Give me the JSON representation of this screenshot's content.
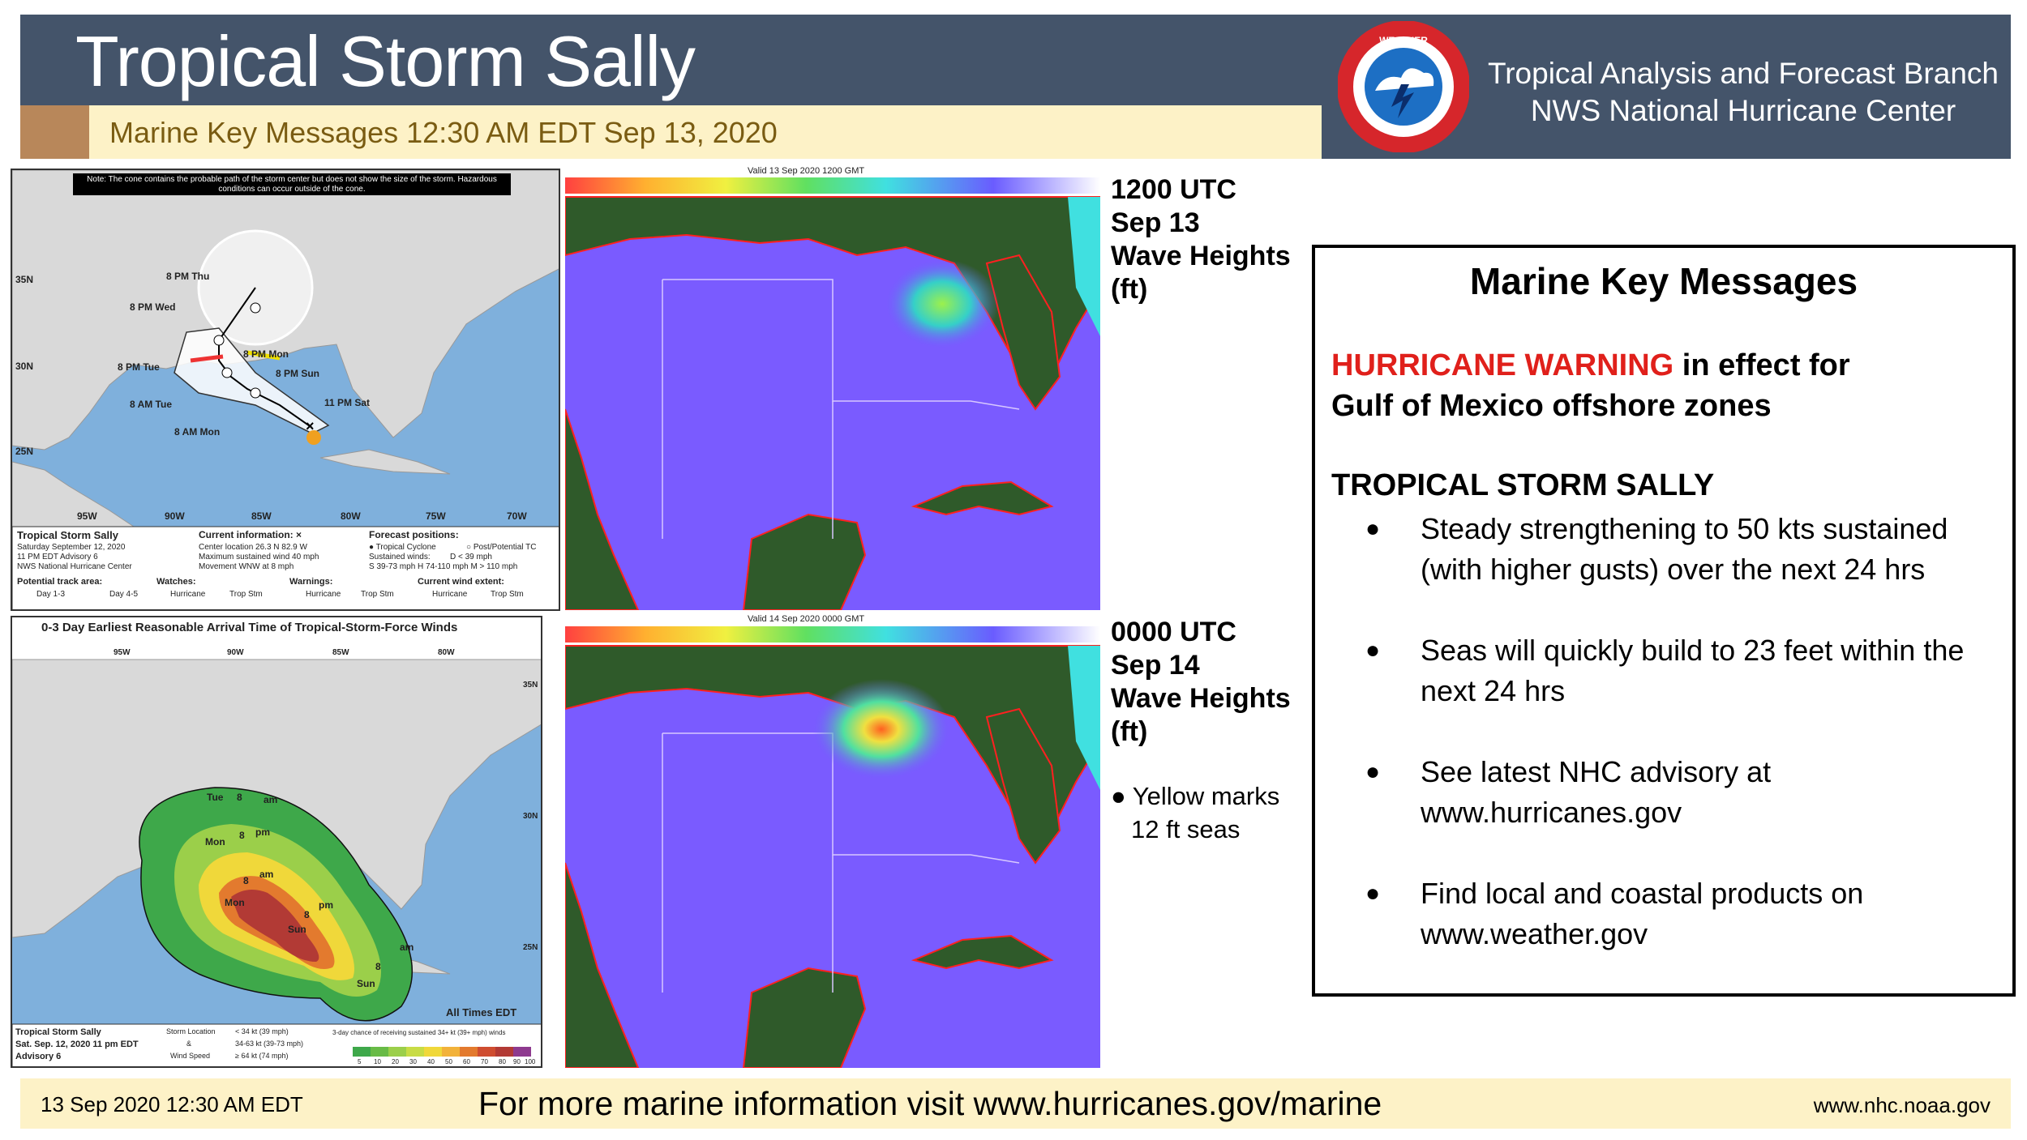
{
  "header": {
    "title": "Tropical Storm Sally",
    "subtitle": "Marine Key Messages 12:30 AM EDT Sep 13, 2020",
    "org_line1": "Tropical Analysis and Forecast Branch",
    "org_line2": "NWS National Hurricane Center",
    "logo_text": "NATIONAL WEATHER SERVICE"
  },
  "cone_map": {
    "note": "Note: The cone contains the probable path of the storm center but does not show the size of the storm. Hazardous conditions can occur outside of the cone.",
    "lat_labels": [
      "35N",
      "30N",
      "25N"
    ],
    "lon_labels": [
      "95W",
      "90W",
      "85W",
      "80W",
      "75W",
      "70W"
    ],
    "track_labels": [
      "8 PM Thu",
      "8 PM Wed",
      "8 PM Mon",
      "8 PM Tue",
      "8 PM Sun",
      "8 AM Tue",
      "11 PM Sat",
      "8 AM Mon"
    ],
    "legend": {
      "storm_name": "Tropical Storm Sally",
      "date": "Saturday September 12, 2020",
      "advisory": "11 PM EDT Advisory 6",
      "center": "NWS National Hurricane Center",
      "current_info_title": "Current information: ×",
      "current_info": [
        "Center location 26.3 N 82.9 W",
        "Maximum sustained wind 40 mph",
        "Movement WNW at 8 mph"
      ],
      "forecast_title": "Forecast positions:",
      "forecast_items": [
        "● Tropical Cyclone",
        "○ Post/Potential TC"
      ],
      "sustained": "Sustained winds:",
      "d_line": "D < 39 mph",
      "scale_line": "S 39-73 mph  H 74-110 mph  M > 110 mph",
      "track_area": "Potential track area:",
      "day13": "Day 1-3",
      "day45": "Day 4-5",
      "watches": "Watches:",
      "warnings": "Warnings:",
      "wind_extent": "Current wind extent:",
      "hurricane": "Hurricane",
      "trop_stm": "Trop Stm"
    }
  },
  "arrival_map": {
    "title": "0-3 Day Earliest Reasonable Arrival Time of Tropical-Storm-Force Winds",
    "lon_labels": [
      "95W",
      "90W",
      "85W",
      "80W"
    ],
    "lat_labels": [
      "35N",
      "30N",
      "25N"
    ],
    "time_labels": [
      "Tue",
      "8",
      "am",
      "Mon",
      "8",
      "pm",
      "Mon",
      "8",
      "am",
      "Sun",
      "8",
      "pm",
      "Sun",
      "8",
      "am"
    ],
    "all_times": "All Times EDT",
    "legend": {
      "storm_name": "Tropical Storm Sally",
      "date": "Sat. Sep. 12, 2020  11 pm EDT",
      "advisory": "Advisory 6",
      "storm_location": "Storm Location",
      "amp": "&",
      "wind_speed": "Wind Speed",
      "ws1": "< 34 kt (39 mph)",
      "ws2": "34-63 kt (39-73 mph)",
      "ws3": "≥ 64 kt (74 mph)",
      "chance_title": "3-day chance of receiving sustained 34+ kt (39+ mph) winds",
      "scale": [
        "5",
        "10",
        "20",
        "30",
        "40",
        "50",
        "60",
        "70",
        "80",
        "90",
        "100 %"
      ]
    }
  },
  "wave_maps": [
    {
      "valid": "Valid 13 Sep 2020 1200 GMT",
      "label": [
        "1200 UTC",
        "Sep 13",
        "Wave Heights",
        "(ft)"
      ]
    },
    {
      "valid": "Valid 14 Sep 2020 0000 GMT",
      "label": [
        "0000 UTC",
        "Sep 14",
        "Wave Heights",
        "(ft)"
      ],
      "note": [
        "● Yellow marks",
        "12 ft seas"
      ]
    }
  ],
  "key_messages": {
    "title": "Marine Key Messages",
    "warning_red": "HURRICANE WARNING",
    "warning_rest": " in effect for",
    "warning_line2": "Gulf of Mexico offshore zones",
    "storm_heading": "TROPICAL STORM SALLY",
    "bullets": [
      "Steady strengthening to 50 kts sustained (with higher gusts) over the next 24 hrs",
      "Seas will quickly build to 23 feet within the next 24 hrs",
      "See latest NHC advisory at www.hurricanes.gov",
      "Find local and coastal products on www.weather.gov"
    ]
  },
  "footer": {
    "left": "13 Sep 2020 12:30 AM EDT",
    "center": "For more marine information visit www.hurricanes.gov/marine",
    "right": "www.nhc.noaa.gov"
  },
  "colors": {
    "title_bar": "#44546a",
    "sub_bar": "#fdf2c7",
    "warning_red": "#e0201b",
    "land_dark": "#2f5a2a",
    "ocean_wave": "#7b5cff"
  }
}
